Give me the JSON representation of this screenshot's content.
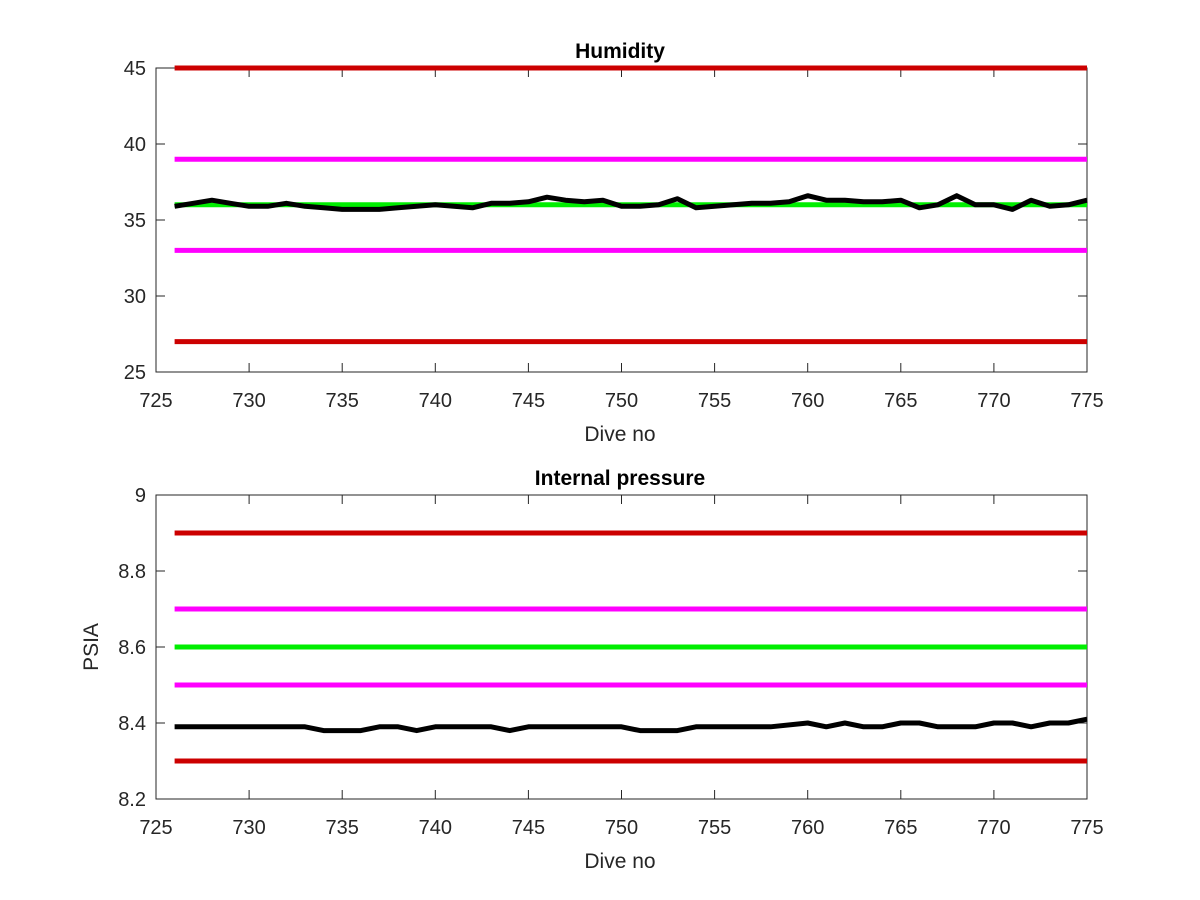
{
  "chart_data": [
    {
      "type": "line",
      "title": "Humidity",
      "xlabel": "Dive no",
      "ylabel": "",
      "xlim": [
        725,
        775
      ],
      "ylim": [
        25,
        45
      ],
      "xticks": [
        725,
        730,
        735,
        740,
        745,
        750,
        755,
        760,
        765,
        770,
        775
      ],
      "yticks": [
        25,
        30,
        35,
        40,
        45
      ],
      "grid": false,
      "series": [
        {
          "color": "#cc0000",
          "x": [
            726,
            775
          ],
          "y": [
            45,
            45
          ]
        },
        {
          "color": "#ff00ff",
          "x": [
            726,
            775
          ],
          "y": [
            39,
            39
          ]
        },
        {
          "color": "#00ee00",
          "x": [
            726,
            775
          ],
          "y": [
            36,
            36
          ]
        },
        {
          "color": "#ff00ff",
          "x": [
            726,
            775
          ],
          "y": [
            33,
            33
          ]
        },
        {
          "color": "#cc0000",
          "x": [
            726,
            775
          ],
          "y": [
            27,
            27
          ]
        },
        {
          "color": "#000000",
          "x": [
            726,
            727,
            728,
            729,
            730,
            731,
            732,
            733,
            734,
            735,
            736,
            737,
            738,
            739,
            740,
            741,
            742,
            743,
            744,
            745,
            746,
            747,
            748,
            749,
            750,
            751,
            752,
            753,
            754,
            755,
            756,
            757,
            758,
            759,
            760,
            761,
            762,
            763,
            764,
            765,
            766,
            767,
            768,
            769,
            770,
            771,
            772,
            773,
            774,
            775
          ],
          "y": [
            35.9,
            36.1,
            36.3,
            36.1,
            35.9,
            35.9,
            36.1,
            35.9,
            35.8,
            35.7,
            35.7,
            35.7,
            35.8,
            35.9,
            36.0,
            35.9,
            35.8,
            36.1,
            36.1,
            36.2,
            36.5,
            36.3,
            36.2,
            36.3,
            35.9,
            35.9,
            36.0,
            36.4,
            35.8,
            35.9,
            36.0,
            36.1,
            36.1,
            36.2,
            36.6,
            36.3,
            36.3,
            36.2,
            36.2,
            36.3,
            35.8,
            36.0,
            36.6,
            36.0,
            36.0,
            35.7,
            36.3,
            35.9,
            36.0,
            36.3
          ]
        }
      ]
    },
    {
      "type": "line",
      "title": "Internal pressure",
      "xlabel": "Dive no",
      "ylabel": "PSIA",
      "xlim": [
        725,
        775
      ],
      "ylim": [
        8.2,
        9.0
      ],
      "xticks": [
        725,
        730,
        735,
        740,
        745,
        750,
        755,
        760,
        765,
        770,
        775
      ],
      "yticks": [
        8.2,
        8.4,
        8.6,
        8.8,
        9.0
      ],
      "ytick_labels": [
        "8.2",
        "8.4",
        "8.6",
        "8.8",
        "9"
      ],
      "grid": false,
      "series": [
        {
          "color": "#cc0000",
          "x": [
            726,
            775
          ],
          "y": [
            8.9,
            8.9
          ]
        },
        {
          "color": "#ff00ff",
          "x": [
            726,
            775
          ],
          "y": [
            8.7,
            8.7
          ]
        },
        {
          "color": "#00ee00",
          "x": [
            726,
            775
          ],
          "y": [
            8.6,
            8.6
          ]
        },
        {
          "color": "#ff00ff",
          "x": [
            726,
            775
          ],
          "y": [
            8.5,
            8.5
          ]
        },
        {
          "color": "#cc0000",
          "x": [
            726,
            775
          ],
          "y": [
            8.3,
            8.3
          ]
        },
        {
          "color": "#000000",
          "x": [
            726,
            728,
            730,
            732,
            733,
            734,
            735,
            736,
            737,
            738,
            739,
            740,
            742,
            743,
            744,
            745,
            746,
            748,
            750,
            751,
            752,
            753,
            754,
            756,
            758,
            760,
            761,
            762,
            763,
            764,
            765,
            766,
            767,
            768,
            769,
            770,
            771,
            772,
            773,
            774,
            775
          ],
          "y": [
            8.39,
            8.39,
            8.39,
            8.39,
            8.39,
            8.38,
            8.38,
            8.38,
            8.39,
            8.39,
            8.38,
            8.39,
            8.39,
            8.39,
            8.38,
            8.39,
            8.39,
            8.39,
            8.39,
            8.38,
            8.38,
            8.38,
            8.39,
            8.39,
            8.39,
            8.4,
            8.39,
            8.4,
            8.39,
            8.39,
            8.4,
            8.4,
            8.39,
            8.39,
            8.39,
            8.4,
            8.4,
            8.39,
            8.4,
            8.4,
            8.41
          ]
        }
      ]
    }
  ]
}
